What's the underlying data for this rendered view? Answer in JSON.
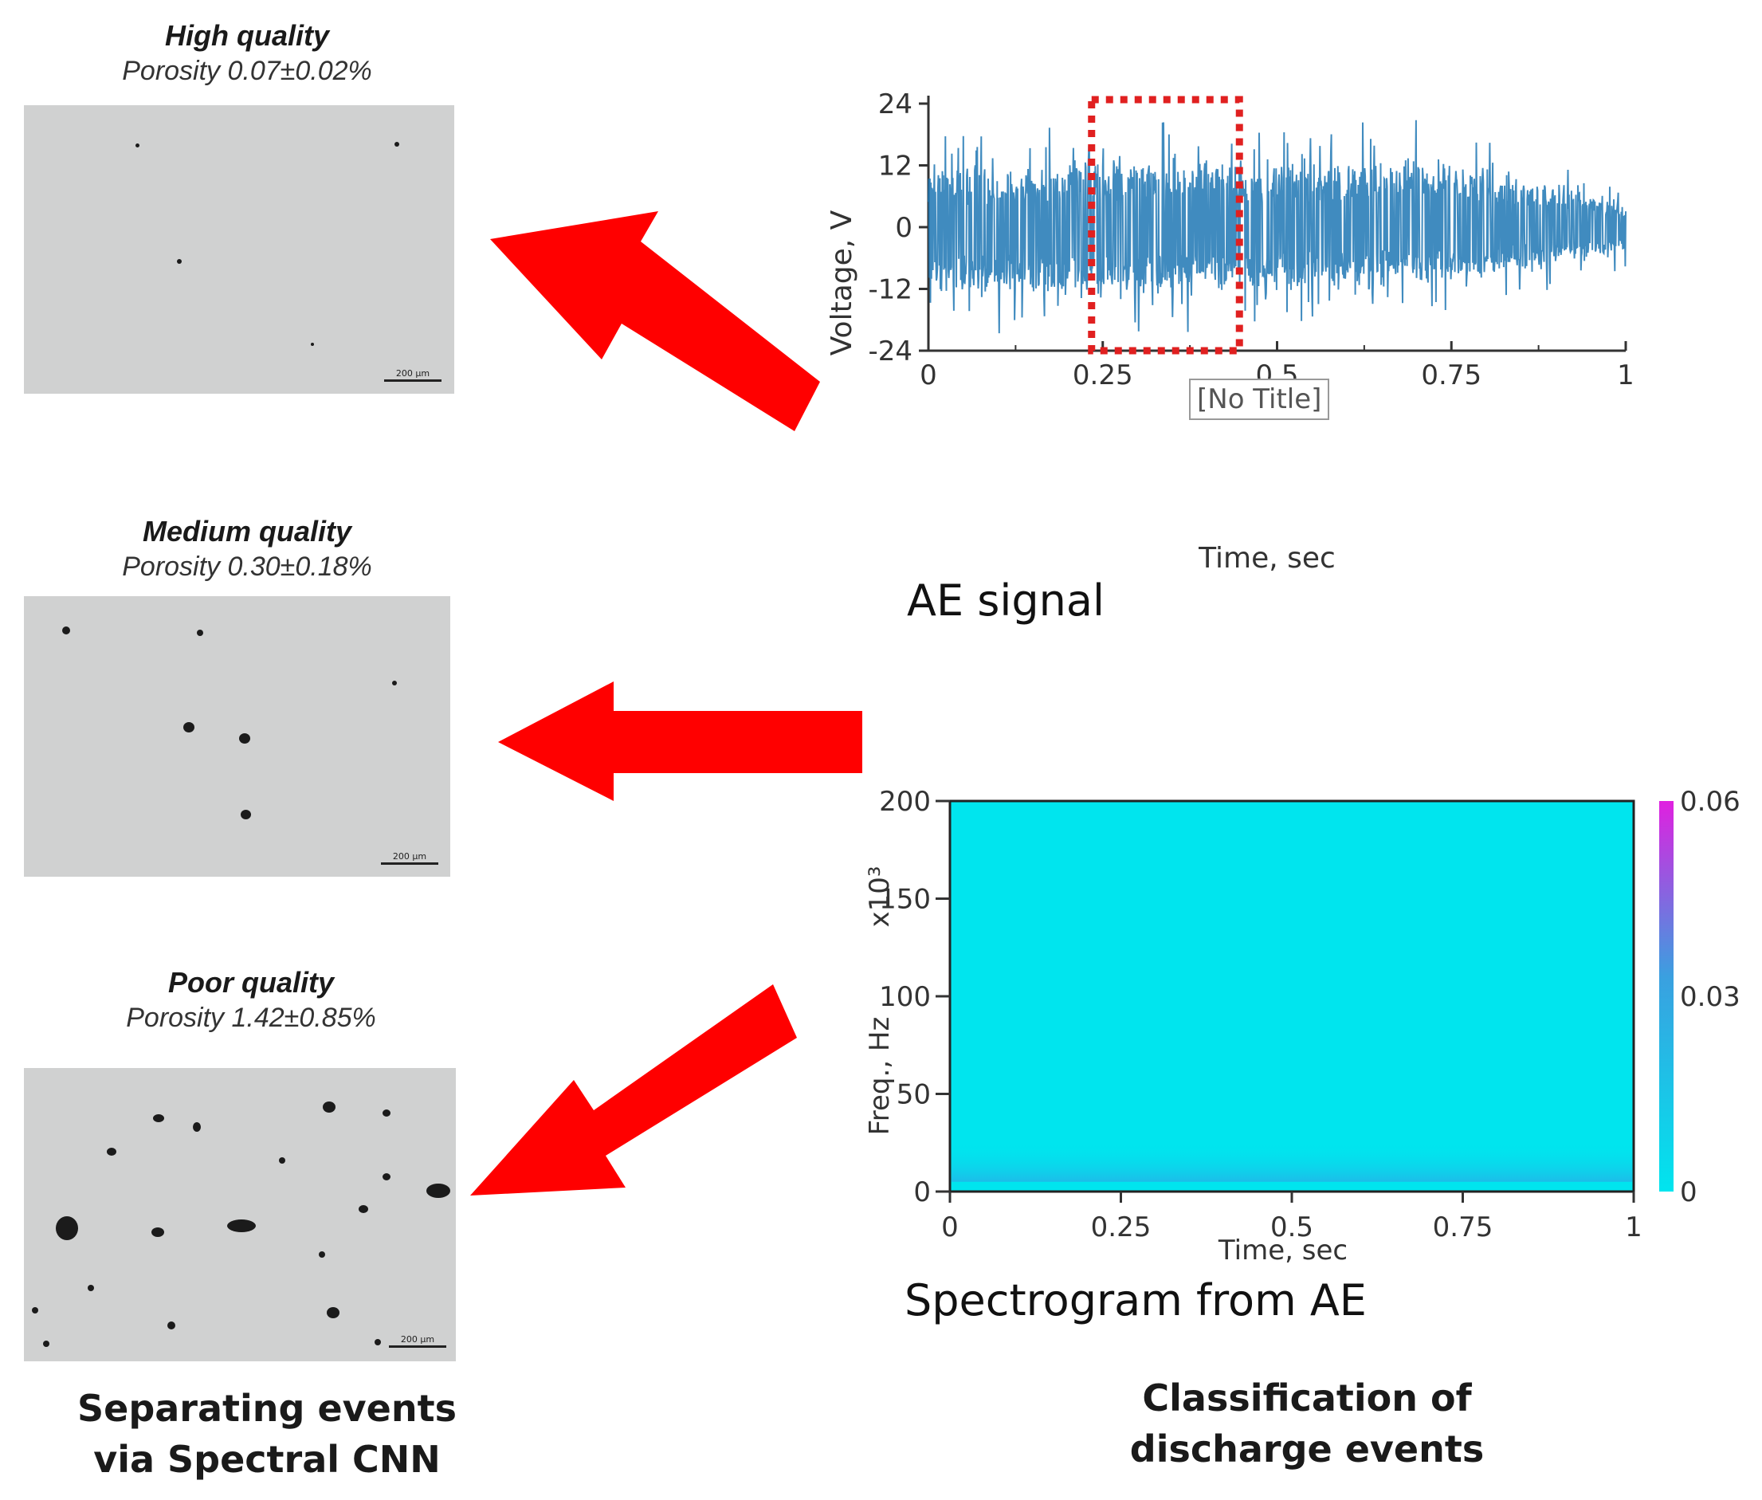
{
  "panels": [
    {
      "title": "High quality",
      "porosity": "Porosity 0.07±0.02%",
      "scale": "200 µm"
    },
    {
      "title": "Medium quality",
      "porosity": "Porosity 0.30±0.18%",
      "scale": "200 µm"
    },
    {
      "title": "Poor quality",
      "porosity": "Porosity 1.42±0.85%",
      "scale": "200 µm"
    }
  ],
  "left_caption": {
    "line1": "Separating events",
    "line2": "via Spectral CNN"
  },
  "right_caption": {
    "line1": "Classification of",
    "line2": "discharge events"
  },
  "signal_plot": {
    "caption": "AE signal",
    "tooltip": "[No Title]",
    "line_color": "#1f77b4",
    "highlight_color": "#e02020"
  },
  "spectrogram": {
    "caption": "Spectrogram from AE",
    "background_color": "#00e5ee",
    "colorbar_top_color": "#e020e0"
  },
  "arrow_color": "#ff0000",
  "chart_data": [
    {
      "type": "line",
      "title": "AE signal",
      "xlabel": "Time, sec",
      "ylabel": "Voltage, V",
      "xlim": [
        0,
        1
      ],
      "ylim": [
        -24,
        24
      ],
      "xticks": [
        0,
        0.25,
        0.5,
        0.75,
        1
      ],
      "xtick_labels": [
        "0",
        "0.25",
        "0.5",
        "0.75",
        "1"
      ],
      "yticks": [
        24,
        12,
        0,
        -12,
        -24
      ],
      "ytick_labels": [
        "24",
        "12",
        "0",
        "-12",
        "-24"
      ],
      "highlight_window": [
        0.25,
        0.43
      ],
      "envelope": {
        "x": [
          0,
          0.25,
          0.5,
          0.75,
          1
        ],
        "ymax": [
          18,
          22,
          20,
          21,
          8
        ],
        "ymin": [
          -20,
          -22,
          -20,
          -18,
          -8
        ]
      }
    },
    {
      "type": "heatmap",
      "title": "Spectrogram from AE",
      "xlabel": "Time, sec",
      "ylabel": "Freq., Hz",
      "yscale_label": "x10³",
      "xlim": [
        0,
        1
      ],
      "ylim": [
        0,
        200
      ],
      "xticks": [
        0,
        0.25,
        0.5,
        0.75,
        1
      ],
      "xtick_labels": [
        "0",
        "0.25",
        "0.5",
        "0.75",
        "1"
      ],
      "yticks": [
        0,
        50,
        100,
        150,
        200
      ],
      "ytick_labels": [
        "0",
        "50",
        "100",
        "150",
        "200"
      ],
      "colorbar": {
        "min": 0,
        "max": 0.06,
        "ticks": [
          0,
          0.03,
          0.06
        ],
        "tick_labels": [
          "0",
          "0.03",
          "0.06"
        ]
      },
      "energy_band_hz_x1000": [
        5,
        25
      ]
    }
  ]
}
